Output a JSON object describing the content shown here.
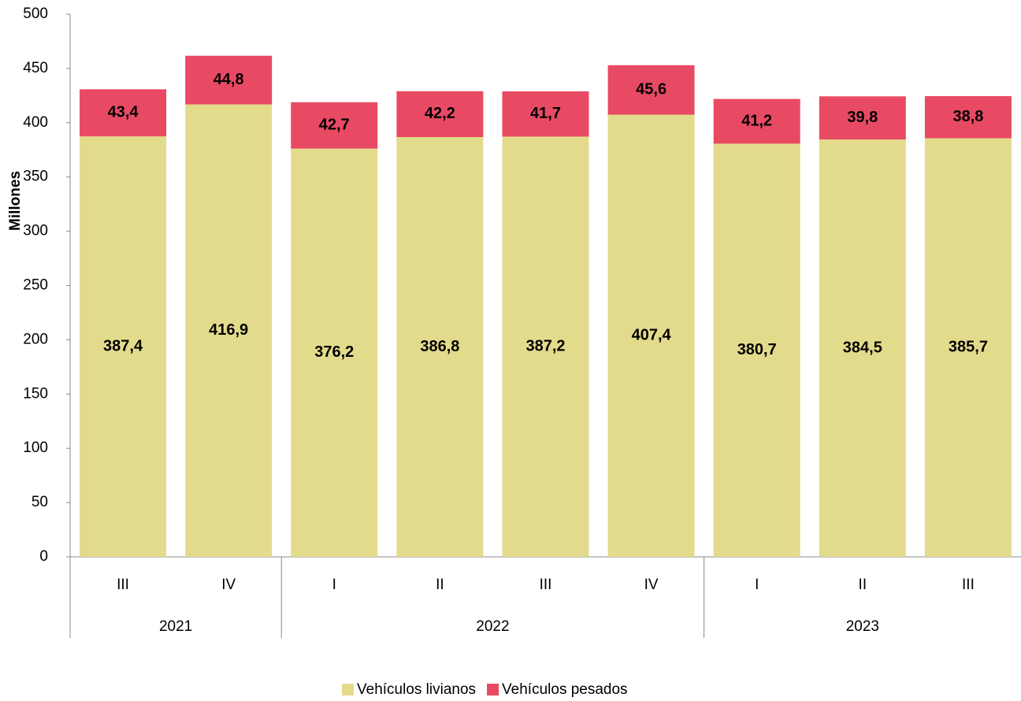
{
  "chart_data": {
    "type": "stacked_bar",
    "y_axis_label": "Millones",
    "categories": [
      "III",
      "IV",
      "I",
      "II",
      "III",
      "IV",
      "I",
      "II",
      "III"
    ],
    "years": [
      "2021",
      "2021",
      "2022",
      "2022",
      "2022",
      "2022",
      "2023",
      "2023",
      "2023"
    ],
    "series": [
      {
        "name": "Vehículos livianos",
        "color": "#e3db8c",
        "values": [
          387.4,
          416.9,
          376.2,
          386.8,
          387.2,
          407.4,
          380.7,
          384.5,
          385.7
        ],
        "value_labels": [
          "387,4",
          "416,9",
          "376,2",
          "386,8",
          "387,2",
          "407,4",
          "380,7",
          "384,5",
          "385,7"
        ]
      },
      {
        "name": "Vehículos pesados",
        "color": "#e84a63",
        "values": [
          43.4,
          44.8,
          42.7,
          42.2,
          41.7,
          45.6,
          41.2,
          39.8,
          38.8
        ],
        "value_labels": [
          "43,4",
          "44,8",
          "42,7",
          "42,2",
          "41,7",
          "45,6",
          "41,2",
          "39,8",
          "38,8"
        ]
      }
    ],
    "ylim": [
      0,
      500
    ],
    "yticks": [
      0,
      50,
      100,
      150,
      200,
      250,
      300,
      350,
      400,
      450,
      500
    ],
    "grid": false,
    "legend": "bottom"
  }
}
